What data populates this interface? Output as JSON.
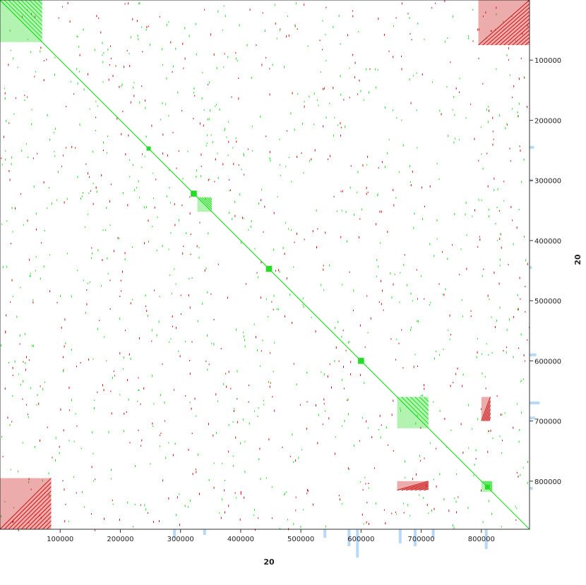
{
  "chart_data": {
    "type": "scatter",
    "title": "",
    "xlabel": "20",
    "ylabel": "20",
    "xlim": [
      0,
      880000
    ],
    "ylim": [
      0,
      880000
    ],
    "y_inverted": true,
    "grid": false,
    "legend": "none",
    "x_ticks": [
      100000,
      200000,
      300000,
      400000,
      500000,
      600000,
      700000,
      800000
    ],
    "y_ticks": [
      100000,
      200000,
      300000,
      400000,
      500000,
      600000,
      700000,
      800000
    ],
    "x_tick_labels": [
      "100000",
      "200000",
      "300000",
      "400000",
      "500000",
      "600000",
      "700000",
      "800000"
    ],
    "y_tick_labels": [
      "100000",
      "200000",
      "300000",
      "400000",
      "500000",
      "600000",
      "700000",
      "800000"
    ],
    "colors": {
      "forward_match": "#22dd22",
      "reverse_match": "#cc1111",
      "coverage_histogram": "#b8d8f8"
    },
    "diagonal": {
      "x": [
        0,
        880000
      ],
      "y": [
        0,
        880000
      ]
    },
    "blocks": [
      {
        "kind": "forward",
        "x": [
          0,
          70000
        ],
        "y": [
          0,
          70000
        ]
      },
      {
        "kind": "reverse",
        "x": [
          795000,
          880000
        ],
        "y": [
          0,
          75000
        ]
      },
      {
        "kind": "reverse",
        "x": [
          0,
          85000
        ],
        "y": [
          795000,
          880000
        ]
      },
      {
        "kind": "forward",
        "x": [
          328000,
          352000
        ],
        "y": [
          328000,
          352000
        ]
      },
      {
        "kind": "forward",
        "x": [
          660000,
          712000
        ],
        "y": [
          660000,
          712000
        ]
      },
      {
        "kind": "reverse",
        "x": [
          800000,
          815000
        ],
        "y": [
          660000,
          700000
        ]
      },
      {
        "kind": "reverse",
        "x": [
          660000,
          712000
        ],
        "y": [
          800000,
          815000
        ]
      },
      {
        "kind": "forward",
        "x": [
          800000,
          818000
        ],
        "y": [
          800000,
          818000
        ]
      }
    ],
    "square_markers": [
      {
        "x": 247000,
        "y": 247000,
        "size": 7000
      },
      {
        "x": 322000,
        "y": 322000,
        "size": 10000
      },
      {
        "x": 447000,
        "y": 447000,
        "size": 10000
      },
      {
        "x": 600000,
        "y": 600000,
        "size": 10000
      },
      {
        "x": 810000,
        "y": 810000,
        "size": 8000
      }
    ],
    "coverage_x": [
      {
        "x": 290000,
        "v": 0.3
      },
      {
        "x": 340000,
        "v": 0.2
      },
      {
        "x": 540000,
        "v": 0.3
      },
      {
        "x": 580000,
        "v": 0.6
      },
      {
        "x": 594000,
        "v": 1.0
      },
      {
        "x": 665000,
        "v": 0.5
      },
      {
        "x": 690000,
        "v": 0.6
      },
      {
        "x": 720000,
        "v": 0.3
      },
      {
        "x": 808000,
        "v": 0.7
      }
    ],
    "coverage_y": [
      {
        "y": 245000,
        "v": 0.4
      },
      {
        "y": 300000,
        "v": 0.3
      },
      {
        "y": 445000,
        "v": 0.2
      },
      {
        "y": 590000,
        "v": 0.6
      },
      {
        "y": 670000,
        "v": 0.9
      },
      {
        "y": 695000,
        "v": 0.5
      },
      {
        "y": 812000,
        "v": 0.3
      }
    ]
  }
}
